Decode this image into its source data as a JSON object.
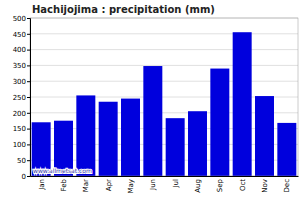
{
  "chart_data": {
    "type": "bar",
    "title": "Hachijojima : precipitation (mm)",
    "categories": [
      "Jan",
      "Feb",
      "Mar",
      "Apr",
      "May",
      "Jun",
      "Jul",
      "Aug",
      "Sep",
      "Oct",
      "Nov",
      "Dec"
    ],
    "values": [
      170,
      175,
      255,
      235,
      245,
      348,
      183,
      205,
      340,
      455,
      253,
      168
    ],
    "color": "#0000dd",
    "ylim": [
      0,
      500
    ],
    "yticks": [
      0,
      50,
      100,
      150,
      200,
      250,
      300,
      350,
      400,
      450,
      500
    ],
    "grid": true,
    "annotations": [
      "www.allmetsat.com"
    ]
  }
}
